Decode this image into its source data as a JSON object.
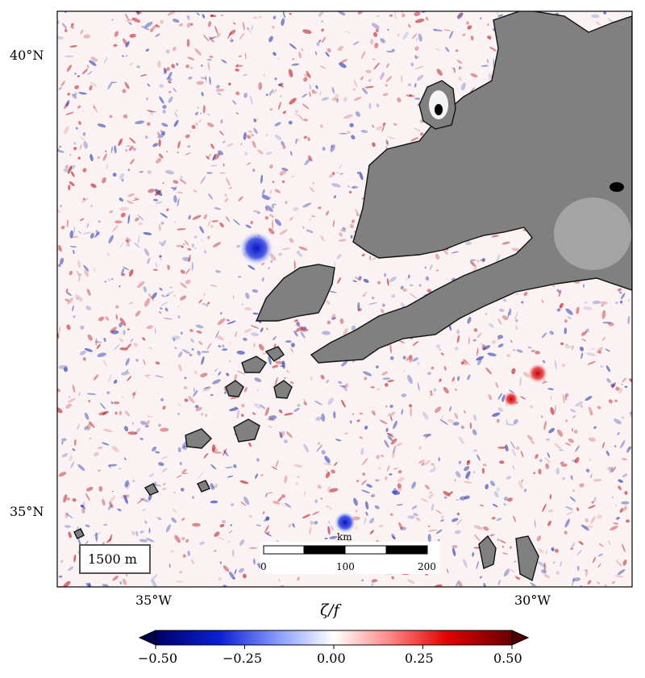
{
  "map": {
    "lat_labels": [
      "40°N",
      "35°N"
    ],
    "lon_labels": [
      "35°W",
      "30°W"
    ],
    "depth_label": "1500 m",
    "colors": {
      "negative": "#0a1fa8",
      "positive": "#b4000c",
      "land": "#808080",
      "background": "#ffffff"
    },
    "scalebar": {
      "unit": "km",
      "tick_labels": [
        "0",
        "100",
        "200"
      ]
    }
  },
  "colorbar": {
    "label": "ζ/f",
    "tick_labels": [
      "−0.50",
      "−0.25",
      "0.00",
      "0.25",
      "0.50"
    ],
    "range": [
      -0.5,
      0.5
    ]
  }
}
